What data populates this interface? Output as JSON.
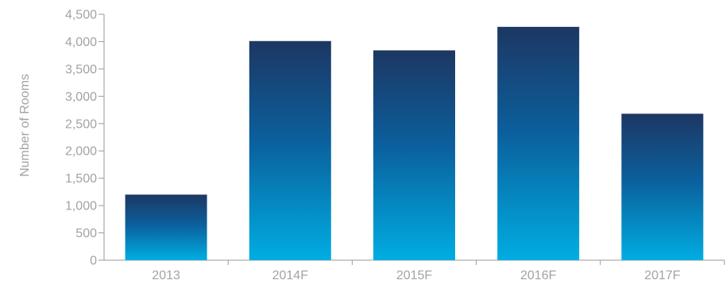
{
  "chart_data": {
    "type": "bar",
    "title": "",
    "xlabel": "",
    "ylabel": "Number of Rooms",
    "categories": [
      "2013",
      "2014F",
      "2015F",
      "2016F",
      "2017F"
    ],
    "values": [
      1200,
      4010,
      3840,
      4270,
      2680
    ],
    "ylim": [
      0,
      4500
    ],
    "yticks": [
      0,
      500,
      1000,
      1500,
      2000,
      2500,
      3000,
      3500,
      4000,
      4500
    ],
    "ytick_labels": [
      "0",
      "500",
      "1,000",
      "1,500",
      "2,000",
      "2,500",
      "3,000",
      "3,500",
      "4,000",
      "4,500"
    ],
    "grid": false,
    "legend": "none",
    "colors": {
      "bar_top": "#1d3763",
      "bar_mid": "#0b5f9c",
      "bar_bottom": "#00ade2",
      "axis": "#9a9a9a",
      "text": "#a3a3a3"
    }
  }
}
